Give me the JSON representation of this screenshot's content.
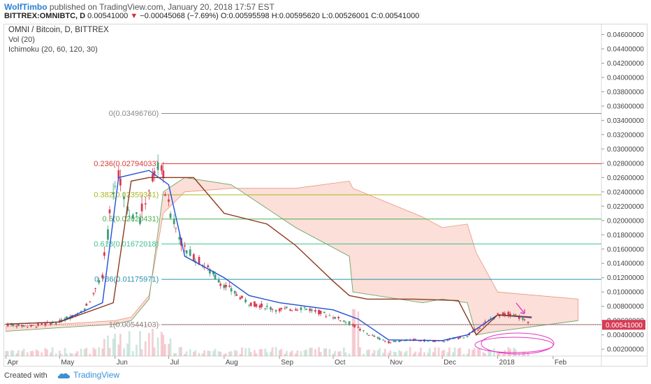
{
  "header": {
    "author": "WolfTimbo",
    "published_text": "published on TradingView.com, January 20, 2018 17:57 EST",
    "symbol": "BITTREX:OMNIBTC, D",
    "last": "0.00541000",
    "change_arrow": "▼",
    "change": "−0.00045068 (−7.69%)",
    "open": "O:0.00595598",
    "high": "H:0.00595620",
    "low": "L:0.00526001",
    "close": "C:0.00541000"
  },
  "legend": {
    "title": "OMNI / Bitcoin, D, BITTREX",
    "vol": "Vol (20)",
    "ichimoku": "Ichimoku (20, 60, 120, 30)"
  },
  "colors": {
    "bull": "#3f9f7a",
    "bear": "#d63c54",
    "tenkan": "#1f4fd6",
    "kijun": "#8b3a1f",
    "cloud_bear": "#f7c4b8",
    "cloud_bull": "#b8e0c2",
    "highlight": "#e535c3"
  },
  "fib_levels": [
    {
      "label": "0(0.03496760)",
      "price": 0.0349676,
      "color": "#888888"
    },
    {
      "label": "0.236(0.02794033)",
      "price": 0.02794033,
      "color": "#d63c3c"
    },
    {
      "label": "0.382(0.02359341)",
      "price": 0.02359341,
      "color": "#a8b820"
    },
    {
      "label": "0.5(0.02020431)",
      "price": 0.02020431,
      "color": "#4caf50"
    },
    {
      "label": "0.618(0.01672018)",
      "price": 0.01672018,
      "color": "#3fbf8f"
    },
    {
      "label": "0.786(0.01175971)",
      "price": 0.01175971,
      "color": "#2a8fb0"
    },
    {
      "label": "1(0.00544103)",
      "price": 0.00544103,
      "color": "#888888"
    }
  ],
  "axis": {
    "y_ticks": [
      "0.04600000",
      "0.04400000",
      "0.04200000",
      "0.04000000",
      "0.03800000",
      "0.03600000",
      "0.03400000",
      "0.03200000",
      "0.03000000",
      "0.02800000",
      "0.02600000",
      "0.02400000",
      "0.02200000",
      "0.02000000",
      "0.01800000",
      "0.01600000",
      "0.01400000",
      "0.01200000",
      "0.01000000",
      "0.00800000",
      "0.00600000",
      "0.00400000",
      "0.00200000"
    ],
    "y_tick_values": [
      0.046,
      0.044,
      0.042,
      0.04,
      0.038,
      0.036,
      0.034,
      0.032,
      0.03,
      0.028,
      0.026,
      0.024,
      0.022,
      0.02,
      0.018,
      0.016,
      0.014,
      0.012,
      0.01,
      0.008,
      0.006,
      0.004,
      0.002
    ],
    "x_ticks": [
      {
        "label": "Apr",
        "date": "2017-04-01"
      },
      {
        "label": "May",
        "date": "2017-05-01"
      },
      {
        "label": "Jun",
        "date": "2017-06-01"
      },
      {
        "label": "Jul",
        "date": "2017-07-01"
      },
      {
        "label": "Aug",
        "date": "2017-08-01"
      },
      {
        "label": "Sep",
        "date": "2017-09-01"
      },
      {
        "label": "Oct",
        "date": "2017-10-01"
      },
      {
        "label": "Nov",
        "date": "2017-11-01"
      },
      {
        "label": "Dec",
        "date": "2017-12-01"
      },
      {
        "label": "2018",
        "date": "2018-01-01"
      },
      {
        "label": "Feb",
        "date": "2018-02-01"
      }
    ],
    "current_price_label": "0.00541000"
  },
  "chart_data": {
    "type": "line",
    "title": "OMNI / Bitcoin, D, BITTREX",
    "xlabel": "",
    "ylabel": "",
    "ylim": [
      0,
      0.048
    ],
    "series": [
      {
        "name": "OMNI / Bitcoin",
        "x": [
          "2017-04-01",
          "2017-04-15",
          "2017-05-01",
          "2017-05-15",
          "2017-05-25",
          "2017-05-31",
          "2017-06-03",
          "2017-06-08",
          "2017-06-15",
          "2017-06-22",
          "2017-06-27",
          "2017-07-01",
          "2017-07-10",
          "2017-07-20",
          "2017-08-01",
          "2017-08-15",
          "2017-09-01",
          "2017-09-15",
          "2017-10-01",
          "2017-10-12",
          "2017-10-20",
          "2017-11-01",
          "2017-11-15",
          "2017-12-01",
          "2017-12-15",
          "2018-01-01",
          "2018-01-10",
          "2018-01-20"
        ],
        "y": [
          0.0055,
          0.0052,
          0.0058,
          0.0075,
          0.012,
          0.024,
          0.027,
          0.022,
          0.02,
          0.026,
          0.028,
          0.022,
          0.016,
          0.014,
          0.011,
          0.0085,
          0.0075,
          0.0078,
          0.0066,
          0.0055,
          0.0042,
          0.003,
          0.0033,
          0.0031,
          0.0038,
          0.0068,
          0.007,
          0.0054
        ]
      },
      {
        "name": "Tenkan",
        "x": [
          "2017-04-01",
          "2017-05-01",
          "2017-05-25",
          "2017-06-03",
          "2017-06-20",
          "2017-07-01",
          "2017-07-10",
          "2017-08-01",
          "2017-08-15",
          "2017-09-01",
          "2017-10-01",
          "2017-10-15",
          "2017-11-01",
          "2017-12-01",
          "2017-12-15",
          "2018-01-01",
          "2018-01-20"
        ],
        "y": [
          0.0055,
          0.0058,
          0.0085,
          0.026,
          0.027,
          0.025,
          0.015,
          0.012,
          0.0095,
          0.0085,
          0.0075,
          0.0062,
          0.0033,
          0.0032,
          0.004,
          0.0068,
          0.0064
        ]
      },
      {
        "name": "Kijun",
        "x": [
          "2017-04-01",
          "2017-05-01",
          "2017-05-31",
          "2017-06-10",
          "2017-06-20",
          "2017-07-15",
          "2017-08-01",
          "2017-08-25",
          "2017-09-10",
          "2017-10-01",
          "2017-10-10",
          "2017-10-20",
          "2017-11-15",
          "2017-12-10",
          "2017-12-20",
          "2018-01-01",
          "2018-01-20"
        ],
        "y": [
          0.0055,
          0.0058,
          0.0085,
          0.0255,
          0.026,
          0.026,
          0.021,
          0.0195,
          0.0165,
          0.0115,
          0.0095,
          0.009,
          0.009,
          0.0088,
          0.004,
          0.0068,
          0.0065
        ]
      }
    ],
    "volume_note": "Vol (20)"
  },
  "footer": {
    "created_with": "Created with",
    "tradingview": "TradingView"
  }
}
